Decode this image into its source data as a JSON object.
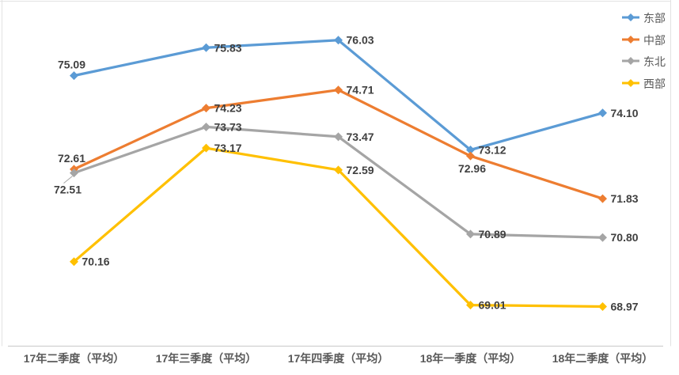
{
  "chart_data": {
    "type": "line",
    "title": "",
    "xlabel": "",
    "ylabel": "",
    "categories": [
      "17年二季度（平均）",
      "17年三季度（平均）",
      "17年四季度（平均）",
      "18年一季度（平均）",
      "18年二季度（平均）"
    ],
    "series": [
      {
        "name": "东部",
        "color": "#5B9BD5",
        "values": [
          75.09,
          75.83,
          76.03,
          73.12,
          74.1
        ],
        "labels": [
          "75.09",
          "75.83",
          "76.03",
          "73.12",
          "74.10"
        ],
        "label_placement": [
          "above",
          "right",
          "right",
          "right",
          "right"
        ]
      },
      {
        "name": "中部",
        "color": "#ED7D31",
        "values": [
          72.61,
          74.23,
          74.71,
          72.96,
          71.83
        ],
        "labels": [
          "72.61",
          "74.23",
          "74.71",
          "72.96",
          "71.83"
        ],
        "label_placement": [
          "above",
          "right",
          "right",
          "below",
          "right"
        ]
      },
      {
        "name": "东北",
        "color": "#A5A5A5",
        "values": [
          72.51,
          73.73,
          73.47,
          70.89,
          70.8
        ],
        "labels": [
          "72.51",
          "73.73",
          "73.47",
          "70.89",
          "70.80"
        ],
        "label_placement": [
          "leader",
          "right",
          "right",
          "right",
          "right"
        ]
      },
      {
        "name": "西部",
        "color": "#FFC000",
        "values": [
          70.16,
          73.17,
          72.59,
          69.01,
          68.97
        ],
        "labels": [
          "70.16",
          "73.17",
          "72.59",
          "69.01",
          "68.97"
        ],
        "label_placement": [
          "right",
          "right",
          "right",
          "right",
          "right"
        ]
      }
    ],
    "marker": "diamond",
    "data_labels_shown": true,
    "grid": false,
    "y_axis_visible": false,
    "ylim": [
      68.5,
      76.5
    ],
    "legend_position": "right-top",
    "colors": {
      "data_label": "#404040",
      "axis_label": "#595959",
      "legend_label": "#595959",
      "axis_line": "#c9c9c9",
      "frame_line": "#e2e2e2"
    }
  }
}
